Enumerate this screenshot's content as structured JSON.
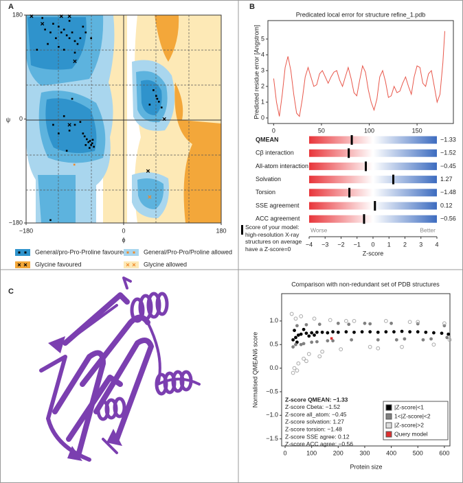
{
  "panel_labels": [
    "A",
    "B",
    "C"
  ],
  "chart_data": [
    {
      "type": "scatter",
      "xlabel": "ϕ",
      "ylabel": "ψ",
      "xlim": [
        -180,
        180
      ],
      "ylim": [
        -180,
        180
      ],
      "xticks": [
        {
          "value": -180,
          "label": "−180"
        },
        0,
        180
      ],
      "yticks": [
        {
          "value": -180,
          "label": "−180"
        },
        0,
        180
      ],
      "series": [
        {
          "name": "General/pro-Pro-Proline favoured",
          "color": "#2f93cc",
          "marker": "square",
          "marker_color": "#000000",
          "x": [
            -150,
            -130,
            -120,
            -115,
            -110,
            -105,
            -100,
            -95,
            -90,
            -85,
            -80,
            -125,
            -135,
            -140,
            -120,
            -110,
            -75,
            -70,
            -60,
            -100,
            -145,
            -160,
            -90,
            -65,
            -60,
            -62,
            -58,
            -55,
            -68,
            -70,
            -63,
            -57,
            -72,
            -90,
            -100,
            -80,
            -110,
            -120,
            -75,
            -105,
            55,
            60,
            65,
            70,
            62,
            48,
            -135,
            -130,
            -95
          ],
          "values": [
            175,
            165,
            160,
            150,
            155,
            145,
            140,
            150,
            135,
            130,
            140,
            140,
            150,
            130,
            125,
            120,
            160,
            150,
            140,
            170,
            155,
            120,
            115,
            -40,
            -45,
            -38,
            -42,
            -48,
            -35,
            -45,
            -50,
            -36,
            -30,
            -10,
            -20,
            -5,
            5,
            -25,
            -25,
            -55,
            50,
            40,
            30,
            20,
            35,
            25,
            -175,
            -10,
            35
          ]
        },
        {
          "name": "General/Pro-Pro/Proline allowed",
          "color": "#a9d6ee",
          "marker": "square",
          "marker_color": "#f08a2a",
          "x": [
            -91
          ],
          "values": [
            -79
          ]
        },
        {
          "name": "Glycine favoured",
          "color": "#f3a73a",
          "marker": "cross",
          "marker_color": "#000000",
          "x": [
            -170,
            -115,
            -100,
            -150,
            -90,
            -100,
            75,
            45
          ],
          "values": [
            178,
            178,
            178,
            165,
            100,
            -10,
            0,
            -90
          ]
        },
        {
          "name": "Glycine allowed",
          "color": "#fde9b6",
          "marker": "cross",
          "marker_color": "#f08a2a",
          "x": [
            48
          ],
          "values": [
            -135
          ]
        }
      ]
    },
    {
      "type": "line",
      "title": "Predicated local error for structure refine_1.pdb",
      "ylabel": "Predicted residue error [Angstrom]",
      "color": "#e8564a",
      "xlim": [
        -6,
        188
      ],
      "ylim": [
        -0.35,
        6.17
      ],
      "xticks": [
        0,
        50,
        100,
        150
      ],
      "yticks": [
        0,
        1,
        2,
        3,
        4,
        5
      ],
      "x": [
        0,
        3,
        6,
        9,
        12,
        15,
        18,
        21,
        24,
        27,
        30,
        33,
        36,
        39,
        42,
        45,
        48,
        51,
        54,
        57,
        60,
        63,
        66,
        69,
        72,
        75,
        78,
        81,
        84,
        87,
        90,
        93,
        96,
        99,
        102,
        105,
        108,
        111,
        114,
        117,
        120,
        123,
        126,
        129,
        132,
        135,
        138,
        141,
        144,
        147,
        150,
        153,
        156,
        159,
        162,
        165,
        168,
        171,
        174,
        177,
        179
      ],
      "values": [
        2.5,
        1.0,
        0.1,
        1.5,
        3.2,
        3.9,
        3.0,
        1.5,
        0.3,
        0.1,
        1.2,
        2.6,
        3.2,
        2.6,
        2.0,
        2.1,
        2.8,
        3.0,
        2.6,
        2.2,
        2.6,
        2.9,
        3.0,
        2.4,
        2.0,
        2.6,
        3.2,
        2.5,
        1.6,
        1.4,
        2.4,
        3.3,
        2.9,
        1.8,
        1.0,
        0.5,
        1.2,
        2.6,
        3.0,
        2.3,
        1.3,
        1.4,
        2.0,
        1.6,
        1.7,
        2.2,
        2.6,
        2.0,
        1.5,
        2.6,
        3.3,
        3.2,
        2.2,
        2.0,
        2.8,
        3.0,
        2.0,
        1.0,
        1.5,
        3.5,
        5.5
      ]
    },
    {
      "type": "bar",
      "orientation": "horizontal",
      "xlabel": "Z-score",
      "categories": [
        "QMEAN",
        "Cβ interaction",
        "All-atom interaction",
        "Solvation",
        "Torsion",
        "SSE agreement",
        "ACC agreement"
      ],
      "values": [
        -1.33,
        -1.52,
        -0.45,
        1.27,
        -1.48,
        0.12,
        -0.56
      ],
      "value_labels": [
        "−1.33",
        "−1.52",
        "−0.45",
        "1.27",
        "−1.48",
        "0.12",
        "−0.56"
      ],
      "xlim": [
        -4,
        4
      ],
      "xticks": [
        {
          "value": -4,
          "label": "−4"
        },
        {
          "value": -3,
          "label": "−3"
        },
        {
          "value": -2,
          "label": "−2"
        },
        {
          "value": -1,
          "label": "−1"
        },
        0,
        1,
        2,
        3,
        4
      ],
      "colors": [
        "#e8353a",
        "#ffffff",
        "#3d6cc0"
      ],
      "annotations": [
        "Worse",
        "Better"
      ],
      "note": "Score of your model: high-resolution X-ray structures on average have a Z-score=0"
    },
    {
      "type": "scatter",
      "title": "Comparison with non-redundant set of PDB structures",
      "xlabel": "Protein size",
      "ylabel": "Normalised QMEAN6 score",
      "xlim": [
        -13,
        621
      ],
      "ylim": [
        -1.65,
        1.58
      ],
      "xticks": [
        0,
        100,
        200,
        300,
        400,
        500,
        600
      ],
      "yticks": [
        {
          "value": -1.5,
          "label": "−1.5"
        },
        {
          "value": -1,
          "label": "−1.0"
        },
        {
          "value": -0.5,
          "label": "−0.5"
        },
        {
          "value": 0,
          "label": "0.0"
        },
        0.5,
        {
          "value": 1,
          "label": "1.0"
        }
      ],
      "series": [
        {
          "name": "|Z-score|<1",
          "color": "#000000",
          "marker": "circle",
          "x": [
            30,
            40,
            50,
            60,
            80,
            100,
            120,
            140,
            160,
            180,
            200,
            230,
            260,
            290,
            320,
            350,
            380,
            410,
            440,
            470,
            500,
            530,
            560,
            590,
            615,
            35,
            45,
            70,
            90,
            110
          ],
          "values": [
            0.6,
            0.65,
            0.7,
            0.72,
            0.74,
            0.75,
            0.76,
            0.76,
            0.75,
            0.77,
            0.76,
            0.77,
            0.76,
            0.77,
            0.77,
            0.76,
            0.77,
            0.77,
            0.78,
            0.77,
            0.77,
            0.76,
            0.75,
            0.74,
            0.72,
            0.8,
            0.55,
            0.82,
            0.68,
            0.7
          ]
        },
        {
          "name": "1<|Z-score|<2",
          "color": "#808080",
          "marker": "circle",
          "x": [
            30,
            45,
            60,
            80,
            100,
            130,
            160,
            200,
            250,
            300,
            350,
            400,
            450,
            500,
            550,
            600,
            40,
            70,
            120,
            180,
            240,
            320,
            420,
            520,
            610
          ],
          "values": [
            0.45,
            0.9,
            0.5,
            0.92,
            0.55,
            0.93,
            0.58,
            0.95,
            0.6,
            0.95,
            0.6,
            0.95,
            0.62,
            0.94,
            0.62,
            0.9,
            0.5,
            0.52,
            0.56,
            0.58,
            0.93,
            0.94,
            0.6,
            0.6,
            0.65
          ]
        },
        {
          "name": "|Z-score|>2",
          "color": "#a8a8a8",
          "marker": "ring",
          "x": [
            25,
            30,
            35,
            40,
            50,
            60,
            70,
            90,
            110,
            140,
            170,
            210,
            260,
            320,
            380,
            440,
            500,
            560,
            600,
            620,
            45,
            80,
            130,
            230,
            350,
            470
          ],
          "values": [
            1.15,
            -0.1,
            0.0,
            1.05,
            0.1,
            1.1,
            0.2,
            0.3,
            1.05,
            0.35,
            1.02,
            0.4,
            1.0,
            0.45,
            1.0,
            0.45,
            0.98,
            0.5,
            0.95,
            0.6,
            -0.05,
            0.15,
            0.25,
            1.0,
            0.42,
            0.98
          ]
        },
        {
          "name": "Query model",
          "color": "#e03030",
          "marker": "square",
          "x": [
            175
          ],
          "values": [
            0.63
          ]
        }
      ],
      "annotations": [
        "Z-score QMEAN: −1.33",
        "Z-score Cbeta: −1.52",
        "Z-score all_atom: −0.45",
        "Z-score solvation: 1.27",
        "Z-score torsion: −1.48",
        "Z-score SSE agree: 0.12",
        "Z-score ACC agree: −0.56"
      ]
    }
  ]
}
